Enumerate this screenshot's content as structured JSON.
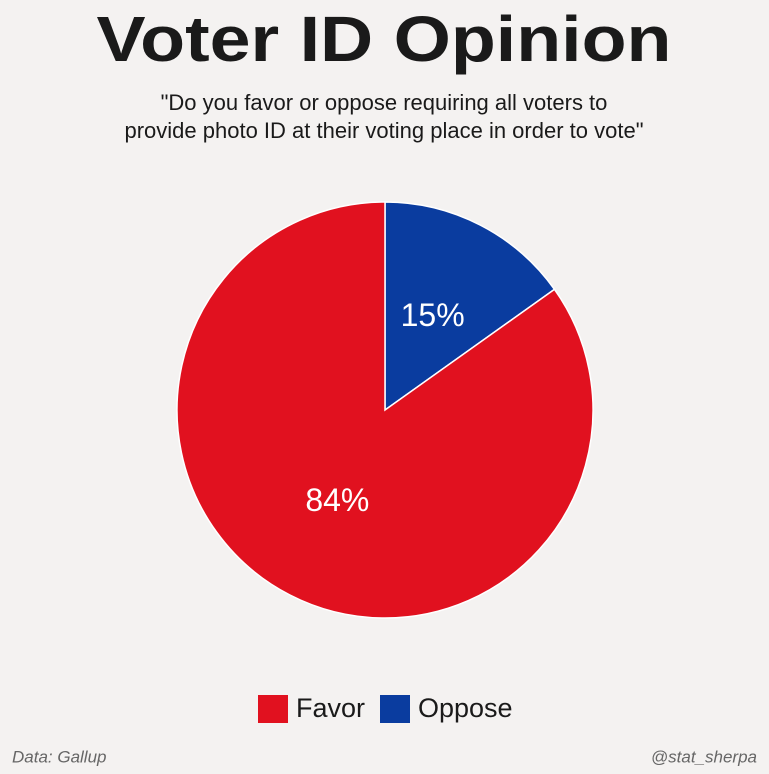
{
  "chart_data": {
    "type": "pie",
    "title": "Voter ID Opinion",
    "subtitle": [
      "\"Do you favor or oppose requiring all voters to",
      "provide photo ID at their voting place in order to vote\""
    ],
    "categories": [
      "Favor",
      "Oppose"
    ],
    "values": [
      84,
      15
    ],
    "value_labels": [
      "84%",
      "15%"
    ],
    "colors": [
      "#e1111f",
      "#0a3c9f"
    ],
    "source": "Data: Gallup",
    "credit": "@stat_sherpa"
  }
}
